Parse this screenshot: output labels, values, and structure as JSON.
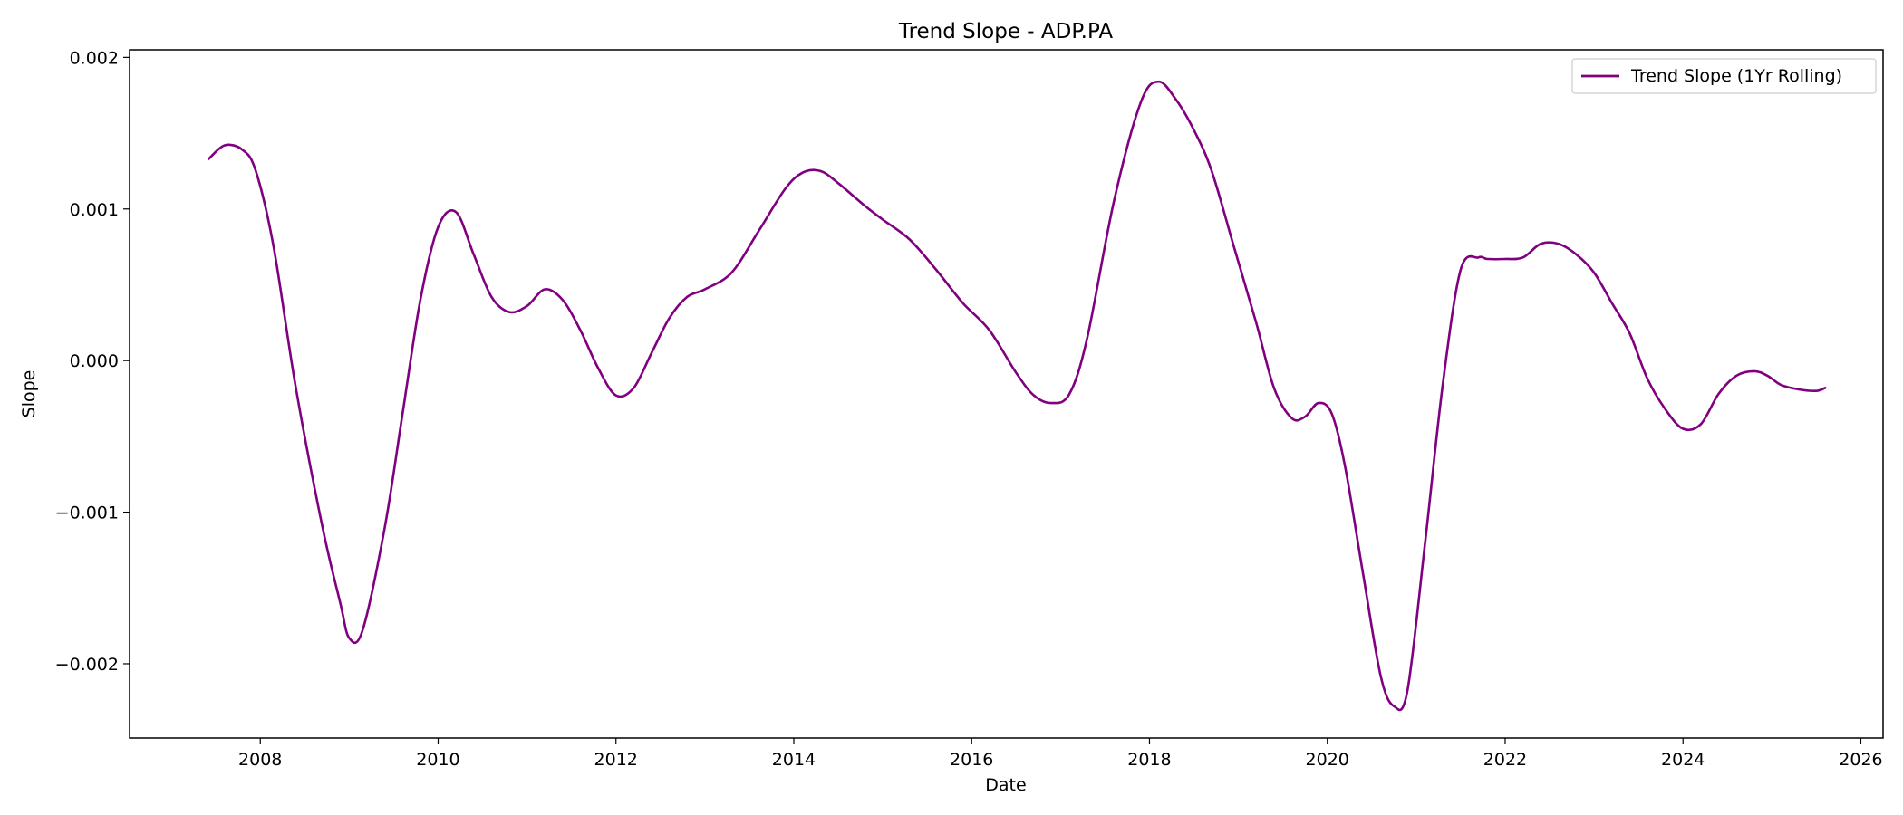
{
  "chart_data": {
    "type": "line",
    "title": "Trend Slope - ADP.PA",
    "xlabel": "Date",
    "ylabel": "Slope",
    "xlim": [
      2006.53,
      2026.25
    ],
    "ylim": [
      -0.00249,
      0.00205
    ],
    "x_ticks": [
      2008,
      2010,
      2012,
      2014,
      2016,
      2018,
      2020,
      2022,
      2024,
      2026
    ],
    "y_ticks": [
      0.002,
      0.001,
      0.0,
      -0.001,
      -0.002
    ],
    "y_tick_labels": [
      "0.002",
      "0.001",
      "0.000",
      "−0.001",
      "−0.002"
    ],
    "grid": false,
    "legend_position": "top-right",
    "series": [
      {
        "name": "Trend Slope (1Yr Rolling)",
        "color": "#800080",
        "x": [
          2007.42,
          2007.6,
          2007.8,
          2007.95,
          2008.15,
          2008.4,
          2008.7,
          2008.9,
          2009.0,
          2009.15,
          2009.4,
          2009.6,
          2009.8,
          2010.0,
          2010.2,
          2010.4,
          2010.6,
          2010.8,
          2011.0,
          2011.2,
          2011.4,
          2011.6,
          2011.8,
          2012.0,
          2012.2,
          2012.4,
          2012.6,
          2012.8,
          2013.0,
          2013.3,
          2013.6,
          2013.9,
          2014.1,
          2014.3,
          2014.5,
          2014.8,
          2015.0,
          2015.3,
          2015.6,
          2015.9,
          2016.2,
          2016.5,
          2016.7,
          2016.9,
          2017.1,
          2017.3,
          2017.6,
          2017.9,
          2018.1,
          2018.3,
          2018.5,
          2018.7,
          2018.95,
          2019.2,
          2019.4,
          2019.6,
          2019.75,
          2019.9,
          2020.05,
          2020.2,
          2020.4,
          2020.6,
          2020.75,
          2020.9,
          2021.1,
          2021.3,
          2021.5,
          2021.7,
          2021.8,
          2022.0,
          2022.2,
          2022.4,
          2022.6,
          2022.8,
          2023.0,
          2023.2,
          2023.4,
          2023.6,
          2023.8,
          2024.0,
          2024.2,
          2024.4,
          2024.6,
          2024.8,
          2024.95,
          2025.1,
          2025.3,
          2025.5,
          2025.6
        ],
        "y": [
          0.00133,
          0.00142,
          0.00139,
          0.00125,
          0.00075,
          -0.00018,
          -0.0011,
          -0.0016,
          -0.00183,
          -0.00178,
          -0.0011,
          -0.00035,
          0.0004,
          0.00088,
          0.00098,
          0.0007,
          0.00042,
          0.00032,
          0.00036,
          0.00047,
          0.0004,
          0.0002,
          -5e-05,
          -0.00023,
          -0.00018,
          5e-05,
          0.00028,
          0.00042,
          0.00047,
          0.00058,
          0.00085,
          0.00113,
          0.00124,
          0.00125,
          0.00117,
          0.00102,
          0.00093,
          0.0008,
          0.0006,
          0.00038,
          0.0002,
          -8e-05,
          -0.00023,
          -0.00028,
          -0.00022,
          0.00015,
          0.00105,
          0.0017,
          0.00184,
          0.00172,
          0.00152,
          0.00125,
          0.00075,
          0.00025,
          -0.00018,
          -0.00038,
          -0.00037,
          -0.00028,
          -0.00035,
          -0.0007,
          -0.0014,
          -0.00208,
          -0.00228,
          -0.00218,
          -0.0012,
          -0.00015,
          0.0006,
          0.00068,
          0.00067,
          0.00067,
          0.00068,
          0.00077,
          0.00077,
          0.0007,
          0.00058,
          0.00038,
          0.00018,
          -0.00012,
          -0.00032,
          -0.00045,
          -0.00042,
          -0.00022,
          -0.0001,
          -7e-05,
          -0.0001,
          -0.00016,
          -0.00019,
          -0.0002,
          -0.00018
        ]
      }
    ]
  }
}
